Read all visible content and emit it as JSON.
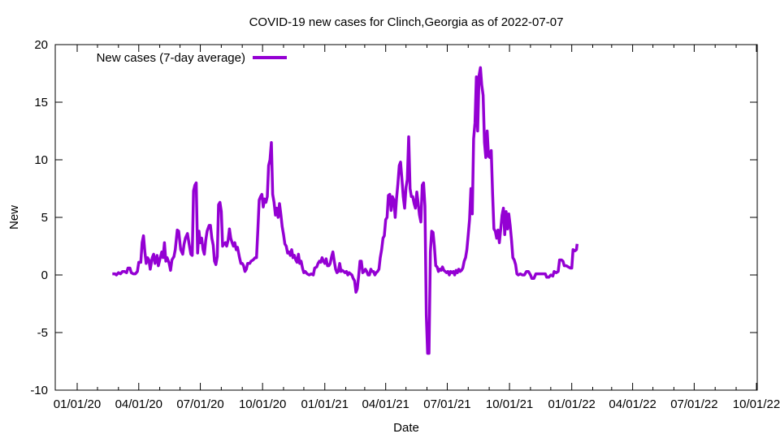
{
  "chart_data": {
    "type": "line",
    "title": "COVID-19 new cases for Clinch,Georgia as of 2022-07-07",
    "xlabel": "Date",
    "ylabel": "New",
    "x_origin_date": "2020-01-01",
    "x_unit": "days since 2020-01-01",
    "xlim": [
      0,
      1004
    ],
    "ylim": [
      -10,
      20
    ],
    "yticks": [
      -10,
      -5,
      0,
      5,
      10,
      15,
      20
    ],
    "ytick_labels": [
      "-10",
      "-5",
      "0",
      "5",
      "10",
      "15",
      "20"
    ],
    "xticks": [
      0,
      91,
      182,
      274,
      366,
      456,
      547,
      639,
      731,
      821,
      912,
      1004
    ],
    "xtick_labels": [
      "01/01/20",
      "04/01/20",
      "07/01/20",
      "10/01/20",
      "01/01/21",
      "04/01/21",
      "07/01/21",
      "10/01/21",
      "01/01/22",
      "04/01/22",
      "07/01/22",
      "10/01/22"
    ],
    "x_minor_ticks": [
      30,
      61,
      122,
      152,
      213,
      244,
      305,
      335,
      397,
      425,
      486,
      517,
      578,
      609,
      670,
      700,
      762,
      790,
      851,
      882,
      943,
      974
    ],
    "grid": false,
    "legend": {
      "position": "top-left",
      "entries": [
        "New cases (7-day average)"
      ]
    },
    "series": [
      {
        "name": "New cases (7-day average)",
        "color": "#9400d3",
        "points": [
          [
            52,
            0.1
          ],
          [
            56,
            0.1
          ],
          [
            58,
            0.0
          ],
          [
            61,
            0.2
          ],
          [
            64,
            0.1
          ],
          [
            67,
            0.3
          ],
          [
            70,
            0.3
          ],
          [
            73,
            0.2
          ],
          [
            75,
            0.6
          ],
          [
            78,
            0.6
          ],
          [
            80,
            0.2
          ],
          [
            83,
            0.1
          ],
          [
            86,
            0.1
          ],
          [
            89,
            0.3
          ],
          [
            91,
            1.1
          ],
          [
            94,
            1.1
          ],
          [
            96,
            2.8
          ],
          [
            98,
            3.4
          ],
          [
            100,
            2.0
          ],
          [
            102,
            1.0
          ],
          [
            104,
            1.5
          ],
          [
            106,
            1.3
          ],
          [
            108,
            0.5
          ],
          [
            111,
            1.5
          ],
          [
            113,
            1.8
          ],
          [
            115,
            1.0
          ],
          [
            118,
            1.7
          ],
          [
            120,
            0.8
          ],
          [
            122,
            1.3
          ],
          [
            125,
            2.0
          ],
          [
            127,
            1.5
          ],
          [
            129,
            2.8
          ],
          [
            131,
            1.2
          ],
          [
            133,
            1.5
          ],
          [
            136,
            1.0
          ],
          [
            138,
            0.4
          ],
          [
            140,
            1.3
          ],
          [
            143,
            1.6
          ],
          [
            145,
            2.2
          ],
          [
            148,
            3.9
          ],
          [
            150,
            3.8
          ],
          [
            153,
            2.2
          ],
          [
            156,
            1.8
          ],
          [
            158,
            2.7
          ],
          [
            160,
            3.2
          ],
          [
            163,
            3.6
          ],
          [
            166,
            2.5
          ],
          [
            168,
            1.8
          ],
          [
            170,
            1.7
          ],
          [
            172,
            7.3
          ],
          [
            174,
            7.8
          ],
          [
            176,
            8.0
          ],
          [
            178,
            1.9
          ],
          [
            180,
            3.8
          ],
          [
            182,
            2.8
          ],
          [
            184,
            3.2
          ],
          [
            186,
            2.2
          ],
          [
            188,
            1.8
          ],
          [
            190,
            3.0
          ],
          [
            192,
            3.8
          ],
          [
            195,
            4.3
          ],
          [
            197,
            4.3
          ],
          [
            199,
            3.2
          ],
          [
            201,
            2.6
          ],
          [
            203,
            1.2
          ],
          [
            205,
            0.9
          ],
          [
            207,
            1.6
          ],
          [
            209,
            6.1
          ],
          [
            211,
            6.3
          ],
          [
            213,
            5.5
          ],
          [
            215,
            2.5
          ],
          [
            217,
            2.7
          ],
          [
            219,
            2.8
          ],
          [
            221,
            2.5
          ],
          [
            223,
            3.0
          ],
          [
            225,
            4.0
          ],
          [
            227,
            3.2
          ],
          [
            229,
            2.8
          ],
          [
            231,
            2.5
          ],
          [
            233,
            2.8
          ],
          [
            235,
            2.2
          ],
          [
            237,
            2.4
          ],
          [
            240,
            1.5
          ],
          [
            242,
            1.0
          ],
          [
            244,
            1.0
          ],
          [
            246,
            0.8
          ],
          [
            248,
            0.3
          ],
          [
            250,
            0.5
          ],
          [
            252,
            1.0
          ],
          [
            255,
            1.0
          ],
          [
            257,
            1.2
          ],
          [
            260,
            1.3
          ],
          [
            263,
            1.5
          ],
          [
            265,
            1.5
          ],
          [
            267,
            3.8
          ],
          [
            269,
            6.5
          ],
          [
            271,
            6.8
          ],
          [
            273,
            7.0
          ],
          [
            275,
            5.9
          ],
          [
            277,
            6.6
          ],
          [
            279,
            6.3
          ],
          [
            281,
            6.8
          ],
          [
            283,
            9.5
          ],
          [
            285,
            10.0
          ],
          [
            287,
            11.5
          ],
          [
            289,
            7.0
          ],
          [
            291,
            6.3
          ],
          [
            293,
            5.2
          ],
          [
            295,
            5.8
          ],
          [
            297,
            5.0
          ],
          [
            299,
            6.2
          ],
          [
            301,
            5.3
          ],
          [
            303,
            4.2
          ],
          [
            305,
            3.5
          ],
          [
            307,
            2.7
          ],
          [
            309,
            2.5
          ],
          [
            311,
            1.9
          ],
          [
            313,
            2.0
          ],
          [
            315,
            1.7
          ],
          [
            317,
            2.2
          ],
          [
            319,
            1.5
          ],
          [
            321,
            1.7
          ],
          [
            323,
            1.3
          ],
          [
            325,
            1.1
          ],
          [
            327,
            1.8
          ],
          [
            329,
            1.0
          ],
          [
            331,
            1.2
          ],
          [
            333,
            0.6
          ],
          [
            335,
            0.2
          ],
          [
            337,
            0.3
          ],
          [
            340,
            0.1
          ],
          [
            343,
            0.0
          ],
          [
            346,
            0.1
          ],
          [
            349,
            0.0
          ],
          [
            351,
            0.6
          ],
          [
            354,
            0.7
          ],
          [
            356,
            1.0
          ],
          [
            358,
            1.2
          ],
          [
            360,
            1.1
          ],
          [
            362,
            1.5
          ],
          [
            364,
            1.2
          ],
          [
            366,
            1.0
          ],
          [
            368,
            1.4
          ],
          [
            370,
            0.8
          ],
          [
            372,
            0.8
          ],
          [
            374,
            1.0
          ],
          [
            376,
            1.6
          ],
          [
            378,
            2.0
          ],
          [
            380,
            1.2
          ],
          [
            382,
            0.5
          ],
          [
            384,
            0.2
          ],
          [
            386,
            0.3
          ],
          [
            388,
            1.0
          ],
          [
            390,
            0.3
          ],
          [
            392,
            0.4
          ],
          [
            394,
            0.3
          ],
          [
            396,
            0.2
          ],
          [
            398,
            0.3
          ],
          [
            400,
            0.0
          ],
          [
            402,
            0.2
          ],
          [
            404,
            0.1
          ],
          [
            406,
            0.0
          ],
          [
            408,
            -0.3
          ],
          [
            410,
            -0.5
          ],
          [
            412,
            -1.5
          ],
          [
            414,
            -1.2
          ],
          [
            416,
            -0.1
          ],
          [
            418,
            1.2
          ],
          [
            420,
            1.2
          ],
          [
            422,
            0.2
          ],
          [
            424,
            0.3
          ],
          [
            426,
            0.5
          ],
          [
            428,
            0.3
          ],
          [
            430,
            0.0
          ],
          [
            432,
            0.0
          ],
          [
            434,
            0.5
          ],
          [
            436,
            0.3
          ],
          [
            438,
            0.3
          ],
          [
            440,
            0.0
          ],
          [
            442,
            0.2
          ],
          [
            444,
            0.3
          ],
          [
            446,
            0.5
          ],
          [
            448,
            1.5
          ],
          [
            450,
            2.2
          ],
          [
            452,
            3.2
          ],
          [
            454,
            3.4
          ],
          [
            456,
            4.8
          ],
          [
            458,
            5.0
          ],
          [
            460,
            6.9
          ],
          [
            462,
            7.0
          ],
          [
            464,
            5.6
          ],
          [
            466,
            6.8
          ],
          [
            468,
            6.5
          ],
          [
            470,
            5.0
          ],
          [
            472,
            6.6
          ],
          [
            474,
            7.9
          ],
          [
            476,
            9.5
          ],
          [
            478,
            9.8
          ],
          [
            480,
            8.3
          ],
          [
            482,
            6.8
          ],
          [
            484,
            5.8
          ],
          [
            486,
            7.6
          ],
          [
            488,
            8.3
          ],
          [
            490,
            12.0
          ],
          [
            492,
            7.5
          ],
          [
            494,
            6.8
          ],
          [
            496,
            6.8
          ],
          [
            498,
            6.2
          ],
          [
            500,
            5.8
          ],
          [
            502,
            7.2
          ],
          [
            504,
            6.2
          ],
          [
            506,
            5.2
          ],
          [
            508,
            4.6
          ],
          [
            510,
            7.8
          ],
          [
            512,
            8.0
          ],
          [
            514,
            6.0
          ],
          [
            516,
            -3.5
          ],
          [
            518,
            -6.8
          ],
          [
            520,
            -6.8
          ],
          [
            522,
            2.0
          ],
          [
            524,
            3.8
          ],
          [
            526,
            3.7
          ],
          [
            528,
            2.5
          ],
          [
            530,
            0.8
          ],
          [
            532,
            0.7
          ],
          [
            534,
            0.3
          ],
          [
            536,
            0.5
          ],
          [
            538,
            0.4
          ],
          [
            540,
            0.7
          ],
          [
            542,
            0.4
          ],
          [
            544,
            0.3
          ],
          [
            546,
            0.2
          ],
          [
            548,
            0.3
          ],
          [
            550,
            0.0
          ],
          [
            552,
            0.3
          ],
          [
            554,
            0.2
          ],
          [
            556,
            0.3
          ],
          [
            558,
            0.0
          ],
          [
            560,
            0.4
          ],
          [
            562,
            0.2
          ],
          [
            564,
            0.5
          ],
          [
            566,
            0.3
          ],
          [
            568,
            0.4
          ],
          [
            570,
            0.6
          ],
          [
            572,
            1.2
          ],
          [
            574,
            1.5
          ],
          [
            576,
            2.2
          ],
          [
            578,
            3.5
          ],
          [
            580,
            4.8
          ],
          [
            582,
            7.5
          ],
          [
            584,
            5.3
          ],
          [
            586,
            11.8
          ],
          [
            588,
            13.2
          ],
          [
            590,
            17.2
          ],
          [
            592,
            12.5
          ],
          [
            594,
            17.3
          ],
          [
            596,
            18.0
          ],
          [
            598,
            16.5
          ],
          [
            600,
            15.6
          ],
          [
            602,
            11.5
          ],
          [
            604,
            10.2
          ],
          [
            606,
            12.5
          ],
          [
            608,
            10.3
          ],
          [
            610,
            10.2
          ],
          [
            612,
            10.8
          ],
          [
            614,
            7.0
          ],
          [
            616,
            4.0
          ],
          [
            618,
            3.8
          ],
          [
            620,
            3.2
          ],
          [
            622,
            3.9
          ],
          [
            624,
            2.8
          ],
          [
            626,
            4.0
          ],
          [
            628,
            5.2
          ],
          [
            630,
            5.8
          ],
          [
            632,
            3.5
          ],
          [
            634,
            5.5
          ],
          [
            636,
            4.0
          ],
          [
            638,
            5.3
          ],
          [
            640,
            4.3
          ],
          [
            642,
            3.0
          ],
          [
            644,
            1.5
          ],
          [
            646,
            1.3
          ],
          [
            648,
            0.9
          ],
          [
            650,
            0.1
          ],
          [
            652,
            0.0
          ],
          [
            655,
            0.1
          ],
          [
            658,
            0.0
          ],
          [
            661,
            0.0
          ],
          [
            664,
            0.3
          ],
          [
            667,
            0.3
          ],
          [
            670,
            0.0
          ],
          [
            672,
            -0.3
          ],
          [
            675,
            -0.3
          ],
          [
            678,
            0.1
          ],
          [
            681,
            0.1
          ],
          [
            684,
            0.1
          ],
          [
            687,
            0.1
          ],
          [
            690,
            0.1
          ],
          [
            692,
            0.1
          ],
          [
            694,
            -0.2
          ],
          [
            697,
            -0.2
          ],
          [
            700,
            0.0
          ],
          [
            703,
            -0.1
          ],
          [
            705,
            0.3
          ],
          [
            708,
            0.2
          ],
          [
            711,
            0.3
          ],
          [
            713,
            1.3
          ],
          [
            716,
            1.3
          ],
          [
            718,
            1.2
          ],
          [
            720,
            0.8
          ],
          [
            723,
            0.8
          ],
          [
            726,
            0.7
          ],
          [
            729,
            0.6
          ],
          [
            731,
            0.6
          ],
          [
            733,
            2.2
          ],
          [
            736,
            2.1
          ],
          [
            738,
            2.2
          ],
          [
            739,
            2.7
          ]
        ]
      }
    ]
  }
}
